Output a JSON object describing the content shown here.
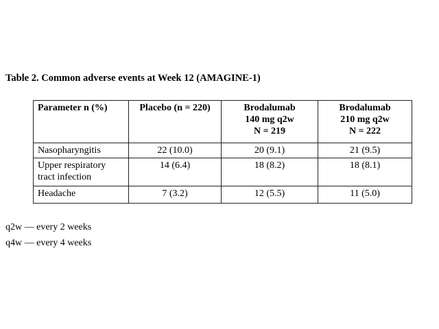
{
  "title": "Table 2. Common adverse events at Week 12 (AMAGINE-1)",
  "table": {
    "headers": [
      [
        "Parameter n (%)"
      ],
      [
        "Placebo (n = 220)"
      ],
      [
        "Brodalumab",
        "140 mg q2w",
        "N = 219"
      ],
      [
        "Brodalumab",
        "210 mg q2w",
        "N = 222"
      ]
    ],
    "rows": [
      {
        "label": [
          "Nasopharyngitis"
        ],
        "values": [
          "22 (10.0)",
          "20 (9.1)",
          "21 (9.5)"
        ]
      },
      {
        "label": [
          "Upper respiratory",
          "tract infection"
        ],
        "values": [
          "14 (6.4)",
          "18 (8.2)",
          "18 (8.1)"
        ]
      },
      {
        "label": [
          "Headache"
        ],
        "values": [
          "7 (3.2)",
          "12 (5.5)",
          "11 (5.0)"
        ]
      }
    ]
  },
  "footnotes": [
    "q2w — every 2 weeks",
    "q4w — every 4 weeks"
  ]
}
